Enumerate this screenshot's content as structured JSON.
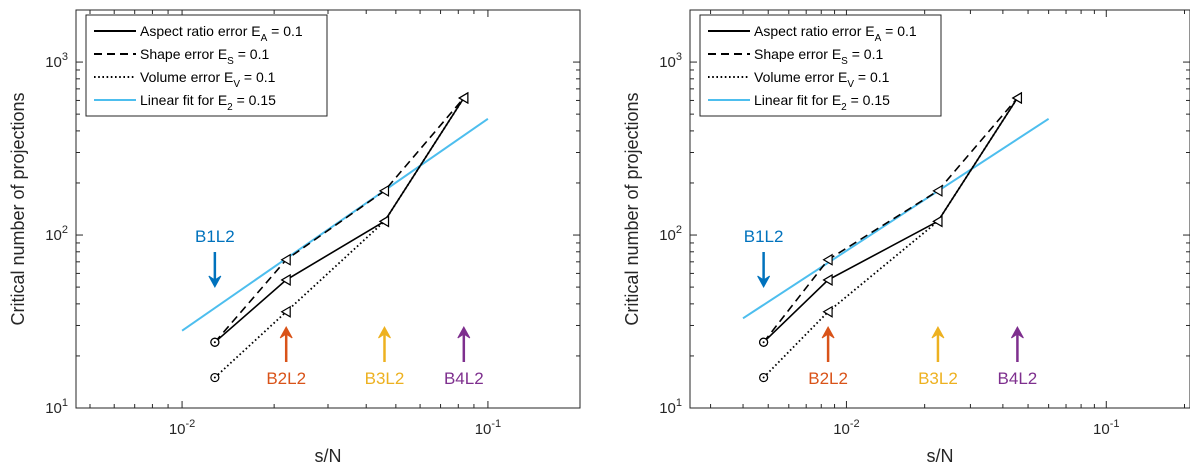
{
  "colors": {
    "fit": "#4DBEEE",
    "B1L2": "#0072BD",
    "B2L2": "#D95319",
    "B3L2": "#EDB120",
    "B4L2": "#7E2F8E",
    "data": "#000000"
  },
  "chart_data": [
    {
      "type": "line",
      "xlabel": "s/N",
      "ylabel": "Critical number of projections",
      "xscale": "log",
      "yscale": "log",
      "xlim": [
        0.0045,
        0.2
      ],
      "ylim": [
        10,
        2000
      ],
      "xticks": [
        {
          "v": 0.01,
          "base": "10",
          "exp": "-2"
        },
        {
          "v": 0.1,
          "base": "10",
          "exp": "-1"
        }
      ],
      "yticks": [
        {
          "v": 10,
          "base": "10",
          "exp": "1"
        },
        {
          "v": 100,
          "base": "10",
          "exp": "2"
        },
        {
          "v": 1000,
          "base": "10",
          "exp": "3"
        }
      ],
      "grid": false,
      "legend_position": "top-left",
      "series": [
        {
          "name_main": "Aspect ratio error E",
          "name_sub": "A",
          "name_tail": " = 0.1",
          "dash": "solid",
          "marker": "left-triangle",
          "x": [
            0.0128,
            0.0219,
            0.0459,
            0.0834
          ],
          "y": [
            24,
            55,
            120,
            620
          ]
        },
        {
          "name_main": "Shape error E",
          "name_sub": "S",
          "name_tail": " = 0.1",
          "dash": "dashed",
          "marker": "left-triangle",
          "x": [
            0.0128,
            0.0219,
            0.0459,
            0.0834
          ],
          "y": [
            24,
            72,
            180,
            620
          ]
        },
        {
          "name_main": "Volume error E",
          "name_sub": "V",
          "name_tail": " = 0.1",
          "dash": "dotted",
          "marker": "left-triangle",
          "x": [
            0.0128,
            0.0219,
            0.0459,
            0.0834
          ],
          "y": [
            15,
            36,
            120,
            620
          ]
        },
        {
          "name_main": "Linear fit for E",
          "name_sub": "2",
          "name_tail": " = 0.15",
          "dash": "fit",
          "x": [
            0.01,
            0.1
          ],
          "y": [
            28,
            470
          ]
        }
      ],
      "annotations": [
        {
          "text": "B1L2",
          "x": 0.0128,
          "dir": "down",
          "color_key": "B1L2"
        },
        {
          "text": "B2L2",
          "x": 0.0219,
          "dir": "up",
          "color_key": "B2L2"
        },
        {
          "text": "B3L2",
          "x": 0.0459,
          "dir": "up",
          "color_key": "B3L2"
        },
        {
          "text": "B4L2",
          "x": 0.0834,
          "dir": "up",
          "color_key": "B4L2"
        }
      ]
    },
    {
      "type": "line",
      "xlabel": "s/N",
      "ylabel": "Critical number of projections",
      "xscale": "log",
      "yscale": "log",
      "xlim": [
        0.0025,
        0.21
      ],
      "ylim": [
        10,
        2000
      ],
      "xticks": [
        {
          "v": 0.01,
          "base": "10",
          "exp": "-2"
        },
        {
          "v": 0.1,
          "base": "10",
          "exp": "-1"
        }
      ],
      "yticks": [
        {
          "v": 10,
          "base": "10",
          "exp": "1"
        },
        {
          "v": 100,
          "base": "10",
          "exp": "2"
        },
        {
          "v": 1000,
          "base": "10",
          "exp": "3"
        }
      ],
      "grid": false,
      "legend_position": "top-left",
      "series": [
        {
          "name_main": "Aspect ratio error E",
          "name_sub": "A",
          "name_tail": " = 0.1",
          "dash": "solid",
          "marker": "left-triangle",
          "x": [
            0.0048,
            0.0085,
            0.0225,
            0.0455
          ],
          "y": [
            24,
            55,
            120,
            620
          ]
        },
        {
          "name_main": "Shape error E",
          "name_sub": "S",
          "name_tail": " = 0.1",
          "dash": "dashed",
          "marker": "left-triangle",
          "x": [
            0.0048,
            0.0085,
            0.0225,
            0.0455
          ],
          "y": [
            24,
            72,
            180,
            620
          ]
        },
        {
          "name_main": "Volume error E",
          "name_sub": "V",
          "name_tail": " = 0.1",
          "dash": "dotted",
          "marker": "left-triangle",
          "x": [
            0.0048,
            0.0085,
            0.0225,
            0.0455
          ],
          "y": [
            15,
            36,
            120,
            620
          ]
        },
        {
          "name_main": "Linear fit for E",
          "name_sub": "2",
          "name_tail": " = 0.15",
          "dash": "fit",
          "x": [
            0.004,
            0.06
          ],
          "y": [
            33,
            470
          ]
        }
      ],
      "annotations": [
        {
          "text": "B1L2",
          "x": 0.0048,
          "dir": "down",
          "color_key": "B1L2"
        },
        {
          "text": "B2L2",
          "x": 0.0085,
          "dir": "up",
          "color_key": "B2L2"
        },
        {
          "text": "B3L2",
          "x": 0.0225,
          "dir": "up",
          "color_key": "B3L2"
        },
        {
          "text": "B4L2",
          "x": 0.0455,
          "dir": "up",
          "color_key": "B4L2"
        }
      ]
    }
  ]
}
